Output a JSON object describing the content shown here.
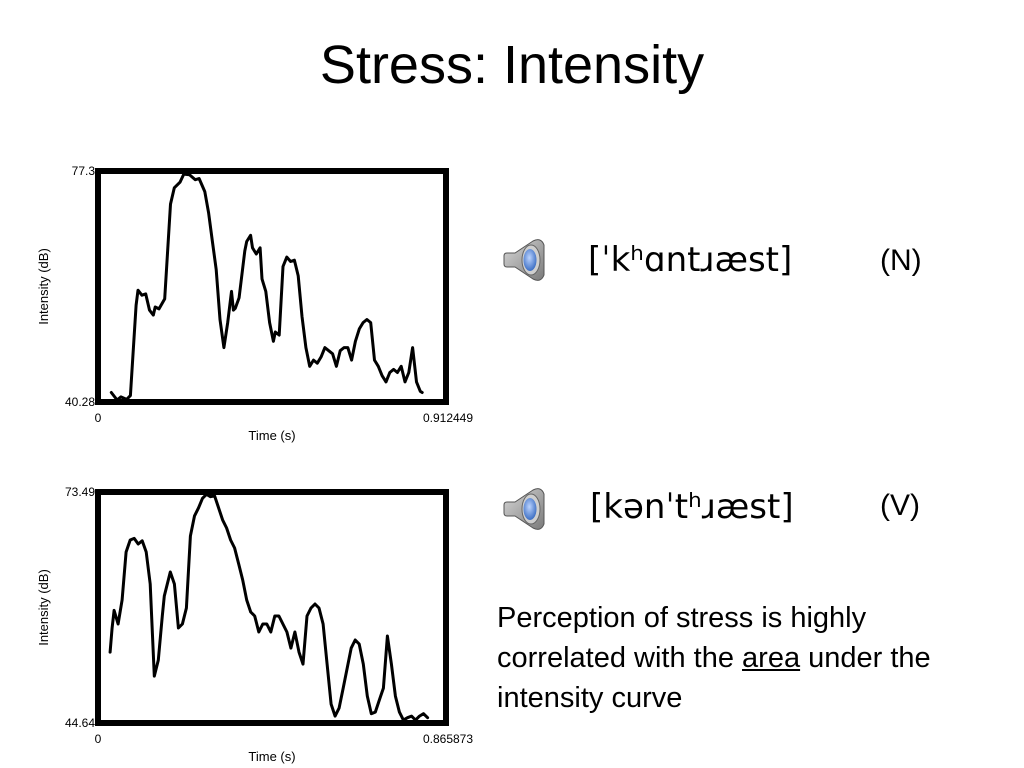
{
  "slide": {
    "title": "Stress: Intensity"
  },
  "examples": [
    {
      "transcription": "[ˈkʰɑntɹæst]",
      "label": "(N)",
      "icon": "speaker-icon"
    },
    {
      "transcription": "[kənˈtʰɹæst]",
      "label": "(V)",
      "icon": "speaker-icon"
    }
  ],
  "note": {
    "before": "Perception of stress is highly correlated with the",
    "emphasis": "area",
    "after": "under the intensity curve"
  },
  "colors": {
    "curve": "#000000",
    "speaker_body": "#7a7a7a",
    "speaker_cone": "#3d6fc4"
  },
  "chart_data": [
    {
      "type": "line",
      "xlabel": "Time (s)",
      "ylabel": "Intensity (dB)",
      "xlim": [
        0,
        0.912449
      ],
      "ylim": [
        40.28,
        77.3
      ],
      "x_tick_labels": [
        "0",
        "0.912449"
      ],
      "y_tick_labels": [
        "40.28",
        "77.3"
      ],
      "grid": false,
      "series": [
        {
          "x": [
            0.035,
            0.05,
            0.06,
            0.075,
            0.085,
            0.1,
            0.105,
            0.115,
            0.125,
            0.135,
            0.145,
            0.15,
            0.16,
            0.175,
            0.19,
            0.2,
            0.215,
            0.225,
            0.24,
            0.255,
            0.265,
            0.28,
            0.29,
            0.3,
            0.31,
            0.32,
            0.33,
            0.34,
            0.35,
            0.355,
            0.36,
            0.37,
            0.38,
            0.385,
            0.39,
            0.4,
            0.405,
            0.415,
            0.425,
            0.43,
            0.44,
            0.45,
            0.46,
            0.465,
            0.475,
            0.485,
            0.495,
            0.505,
            0.515,
            0.525,
            0.535,
            0.545,
            0.555,
            0.565,
            0.575,
            0.585,
            0.595,
            0.605,
            0.615,
            0.625,
            0.635,
            0.645,
            0.655,
            0.665,
            0.675,
            0.685,
            0.695,
            0.705,
            0.715,
            0.725,
            0.735,
            0.745,
            0.755,
            0.765,
            0.775,
            0.785,
            0.795,
            0.805,
            0.815,
            0.825,
            0.835,
            0.845,
            0.85
          ],
          "y": [
            41.8,
            40.6,
            41.1,
            40.7,
            41.3,
            55.8,
            58.2,
            57.4,
            57.6,
            55.0,
            54.2,
            55.5,
            55.2,
            56.8,
            72.0,
            74.6,
            75.5,
            76.8,
            76.7,
            75.9,
            76.1,
            74.0,
            70.6,
            66.0,
            61.5,
            53.5,
            49.0,
            53.0,
            58.0,
            55.0,
            55.3,
            57.0,
            62.0,
            64.5,
            66.0,
            67.0,
            65.0,
            64.0,
            65.0,
            60.0,
            58.0,
            53.0,
            50.0,
            51.5,
            51.0,
            62.0,
            63.5,
            62.8,
            63.0,
            60.5,
            54.0,
            49.0,
            46.0,
            47.0,
            46.5,
            47.5,
            49.0,
            48.5,
            48.0,
            46.0,
            48.5,
            49.0,
            49.0,
            47.0,
            50.0,
            52.0,
            53.0,
            53.5,
            53.0,
            47.0,
            46.0,
            44.5,
            43.5,
            45.0,
            45.5,
            45.0,
            46.0,
            43.5,
            45.0,
            49.0,
            43.5,
            42.0,
            41.8
          ]
        }
      ]
    },
    {
      "type": "line",
      "xlabel": "Time (s)",
      "ylabel": "Intensity (dB)",
      "xlim": [
        0,
        0.865873
      ],
      "ylim": [
        44.64,
        73.49
      ],
      "x_tick_labels": [
        "0",
        "0.865873"
      ],
      "y_tick_labels": [
        "44.64",
        "73.49"
      ],
      "grid": false,
      "series": [
        {
          "x": [
            0.03,
            0.035,
            0.04,
            0.05,
            0.06,
            0.07,
            0.08,
            0.09,
            0.1,
            0.11,
            0.12,
            0.13,
            0.14,
            0.15,
            0.16,
            0.165,
            0.17,
            0.18,
            0.19,
            0.2,
            0.21,
            0.22,
            0.23,
            0.24,
            0.25,
            0.26,
            0.27,
            0.28,
            0.29,
            0.3,
            0.31,
            0.32,
            0.33,
            0.34,
            0.35,
            0.36,
            0.37,
            0.38,
            0.39,
            0.4,
            0.41,
            0.42,
            0.43,
            0.44,
            0.45,
            0.46,
            0.47,
            0.48,
            0.49,
            0.5,
            0.51,
            0.52,
            0.53,
            0.54,
            0.55,
            0.56,
            0.57,
            0.58,
            0.59,
            0.6,
            0.61,
            0.62,
            0.63,
            0.64,
            0.65,
            0.66,
            0.67,
            0.68,
            0.69,
            0.7,
            0.71,
            0.72,
            0.73,
            0.74,
            0.75,
            0.76,
            0.77,
            0.78,
            0.79,
            0.8,
            0.81,
            0.82
          ],
          "y": [
            53.5,
            56.5,
            58.7,
            57.0,
            60.0,
            66.0,
            67.5,
            67.7,
            67.0,
            67.4,
            66.0,
            62.0,
            50.5,
            52.5,
            58.0,
            60.5,
            61.5,
            63.5,
            62.0,
            56.5,
            57.0,
            59.0,
            68.0,
            70.5,
            71.5,
            72.7,
            73.2,
            72.9,
            73.0,
            71.5,
            70.0,
            69.0,
            67.5,
            66.5,
            64.5,
            62.5,
            60.0,
            58.5,
            58.0,
            56.0,
            57.0,
            57.0,
            56.0,
            58.0,
            58.0,
            57.0,
            56.0,
            54.0,
            56.0,
            53.5,
            52.0,
            58.0,
            59.0,
            59.5,
            59.0,
            57.0,
            52.0,
            47.0,
            45.5,
            46.5,
            49.0,
            51.5,
            54.0,
            55.0,
            54.5,
            52.0,
            48.0,
            45.8,
            46.0,
            47.5,
            49.0,
            55.5,
            52.0,
            48.0,
            46.0,
            45.0,
            45.3,
            45.5,
            45.0,
            45.5,
            45.8,
            45.3
          ]
        }
      ]
    }
  ]
}
